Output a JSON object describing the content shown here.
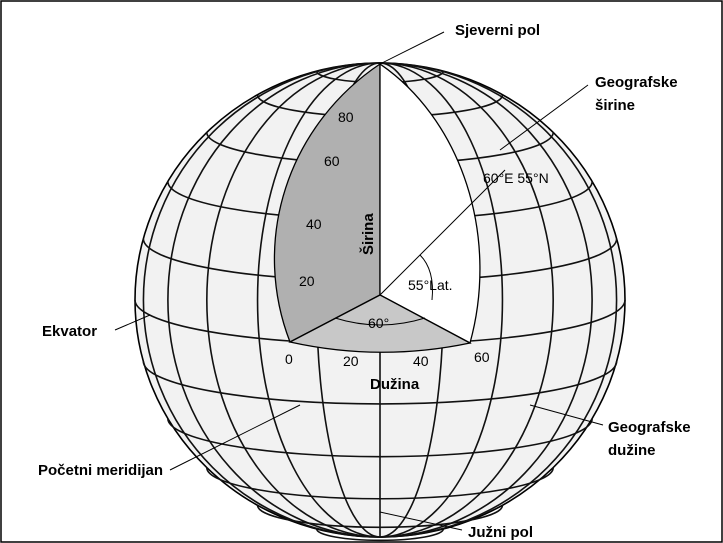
{
  "labels": {
    "north_pole": "Sjeverni pol",
    "latitudes": [
      "Geografske",
      "širine"
    ],
    "point": "60°E 55°N",
    "lat_ticks": [
      "80",
      "60",
      "40",
      "20"
    ],
    "lat_axis": "Širina",
    "lat_angle": "55°Lat.",
    "lon_angle": "60°",
    "equator": "Ekvator",
    "lon_ticks": [
      "0",
      "20",
      "40",
      "60"
    ],
    "lon_axis": "Dužina",
    "longitudes": [
      "Geografske",
      "dužine"
    ],
    "prime_meridian": "Početni meridijan",
    "south_pole": "Južni pol"
  }
}
